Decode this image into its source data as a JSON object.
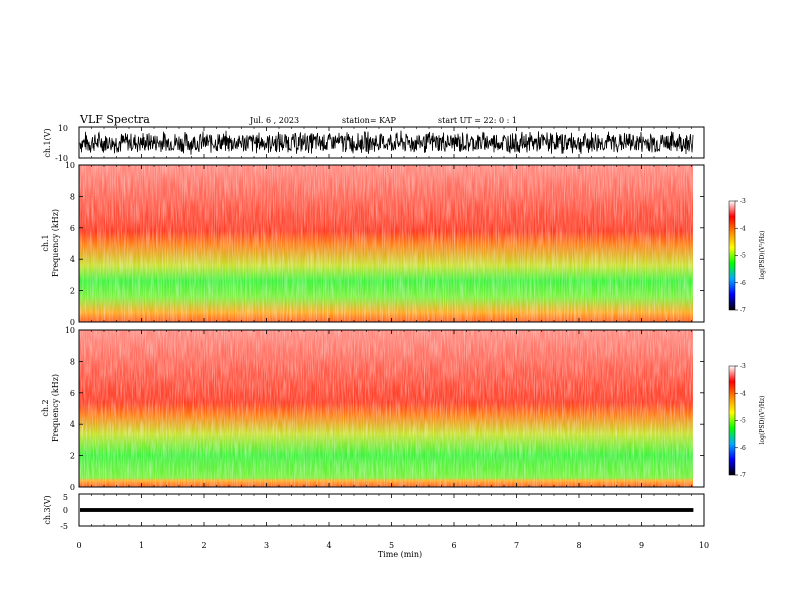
{
  "header": {
    "title": "VLF Spectra",
    "date": "Jul. 6 , 2023",
    "station": "station= KAP",
    "start_ut": "start UT =  22: 0  : 1"
  },
  "chart_data": [
    {
      "type": "line",
      "panel": "ch1-waveform",
      "ylabel": "ch.1(V)",
      "xlim": [
        0,
        10
      ],
      "ylim": [
        -10,
        10
      ],
      "yticks": [
        "10",
        "-10"
      ],
      "data_extent_min": 9.83,
      "envelope_min": -8,
      "envelope_max": 8,
      "color": "#000000"
    },
    {
      "type": "heatmap",
      "panel": "ch1-spectrogram",
      "ylabel_top": "ch.1",
      "ylabel": "Frequency (kHz)",
      "xlim": [
        0,
        10
      ],
      "ylim": [
        0,
        10
      ],
      "yticks": [
        "0",
        "2",
        "4",
        "6",
        "8",
        "10"
      ],
      "green_band_khz": [
        1.6,
        3.6
      ],
      "orange_band_khz": [
        0.6,
        5.0
      ],
      "colorbar": {
        "label": "log(PSD)(V²/Hz)",
        "ticks": [
          "-3",
          "-4",
          "-5",
          "-6",
          "-7"
        ],
        "range": [
          -7,
          -3
        ],
        "colors": [
          "#000000",
          "#0000ff",
          "#00aaff",
          "#00ff00",
          "#ffff00",
          "#ff8800",
          "#ff0000",
          "#ffffff"
        ]
      }
    },
    {
      "type": "heatmap",
      "panel": "ch2-spectrogram",
      "ylabel_top": "ch.2",
      "ylabel": "Frequency (kHz)",
      "xlim": [
        0,
        10
      ],
      "ylim": [
        0,
        10
      ],
      "yticks": [
        "0",
        "2",
        "4",
        "6",
        "8",
        "10"
      ],
      "green_band_khz": [
        0.6,
        3.4
      ],
      "orange_band_khz": [
        0.4,
        4.6
      ],
      "colorbar": {
        "label": "log(PSD)(V²/Hz)",
        "ticks": [
          "-3",
          "-4",
          "-5",
          "-6",
          "-7"
        ],
        "range": [
          -7,
          -3
        ],
        "colors": [
          "#000000",
          "#0000ff",
          "#00aaff",
          "#00ff00",
          "#ffff00",
          "#ff8800",
          "#ff0000",
          "#ffffff"
        ]
      }
    },
    {
      "type": "line",
      "panel": "ch3-waveform",
      "ylabel": "ch.3(V)",
      "xlim": [
        0,
        10
      ],
      "ylim": [
        -5,
        5
      ],
      "yticks": [
        "5",
        "0",
        "-5"
      ],
      "data_extent_min": 9.83,
      "envelope_min": -0.6,
      "envelope_max": 0.6,
      "color": "#000000"
    }
  ],
  "xaxis": {
    "label": "Time (min)",
    "ticks": [
      "0",
      "1",
      "2",
      "3",
      "4",
      "5",
      "6",
      "7",
      "8",
      "9",
      "10"
    ]
  }
}
